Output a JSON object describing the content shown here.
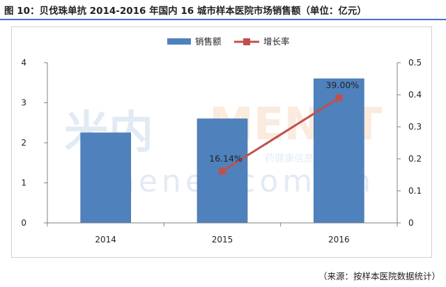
{
  "figure_title": "图 10：贝伐珠单抗 2014-2016 年国内 16 城市样本医院市场销售额（单位：亿元）",
  "source_note": "（来源：按样本医院数据统计）",
  "watermark": {
    "logo_cn": "米内",
    "logo_en": "MENET",
    "url": "menet.com.cn",
    "slogan": "药健康信息第一平台"
  },
  "colors": {
    "bar": "#4f81bd",
    "bar_stroke": "#3f6fa8",
    "line": "#c0504d",
    "title_rule": "#4472c4"
  },
  "chart_data": {
    "type": "bar",
    "categories": [
      "2014",
      "2015",
      "2016"
    ],
    "series": [
      {
        "name": "销售额",
        "type": "bar",
        "axis": "left",
        "values": [
          2.25,
          2.6,
          3.6
        ]
      },
      {
        "name": "增长率",
        "type": "line",
        "axis": "right",
        "values": [
          null,
          0.1614,
          0.39
        ],
        "data_labels": [
          "",
          "16.14%",
          "39.00%"
        ]
      }
    ],
    "ylim": [
      0,
      4
    ],
    "yticks": [
      "0",
      "1",
      "2",
      "3",
      "4"
    ],
    "y2lim": [
      0,
      0.5
    ],
    "y2ticks": [
      "0",
      "0.1",
      "0.2",
      "0.3",
      "0.4",
      "0.5"
    ],
    "legend_position": "top-center",
    "grid": false
  }
}
